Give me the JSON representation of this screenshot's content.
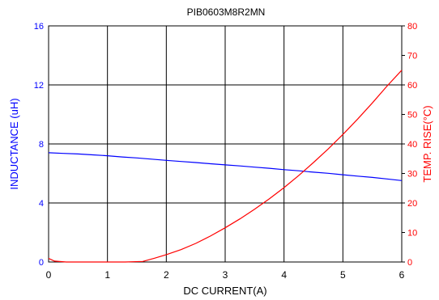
{
  "chart_data": {
    "type": "line",
    "title": "PIB0603M8R2MN",
    "xlabel": "DC CURRENT(A)",
    "ylabel_left": "INDUCTANCE (uH)",
    "ylabel_right": "TEMP. RISE(°C)",
    "xlim": [
      0,
      6
    ],
    "ylim_left": [
      0,
      16
    ],
    "ylim_right": [
      0,
      80
    ],
    "x_ticks": [
      "0",
      "1",
      "2",
      "3",
      "4",
      "5",
      "6"
    ],
    "y_left_ticks": [
      "0",
      "4",
      "8",
      "12",
      "16"
    ],
    "y_right_ticks": [
      "0",
      "10",
      "20",
      "30",
      "40",
      "50",
      "60",
      "70",
      "80"
    ],
    "grid": true,
    "legend": "none",
    "series": [
      {
        "axis": "left",
        "color": "#0000ff",
        "x": [
          0,
          0.25,
          0.5,
          0.75,
          1.0,
          1.25,
          1.5,
          1.75,
          2.0,
          2.25,
          2.5,
          2.75,
          3.0,
          3.25,
          3.5,
          3.75,
          4.0,
          4.25,
          4.5,
          4.75,
          5.0,
          5.25,
          5.5,
          5.75,
          6.0
        ],
        "values": [
          7.4,
          7.36,
          7.32,
          7.26,
          7.2,
          7.12,
          7.05,
          6.97,
          6.89,
          6.81,
          6.74,
          6.66,
          6.58,
          6.51,
          6.43,
          6.35,
          6.26,
          6.18,
          6.09,
          6.01,
          5.91,
          5.82,
          5.73,
          5.63,
          5.52
        ]
      },
      {
        "axis": "right",
        "color": "#ff0000",
        "x": [
          0,
          0.1,
          0.3,
          0.6,
          1.0,
          1.3,
          1.6,
          1.8,
          2.0,
          2.25,
          2.5,
          2.75,
          3.0,
          3.25,
          3.5,
          3.75,
          4.0,
          4.25,
          4.5,
          4.75,
          5.0,
          5.25,
          5.5,
          5.75,
          6.0
        ],
        "values": [
          1.2,
          0.3,
          0,
          0,
          0,
          0,
          0.2,
          1.3,
          2.5,
          4.2,
          6.3,
          8.8,
          11.6,
          14.6,
          17.9,
          21.4,
          25.2,
          29.3,
          33.7,
          38.3,
          43.2,
          48.4,
          53.9,
          59.6,
          65.0
        ]
      }
    ]
  }
}
